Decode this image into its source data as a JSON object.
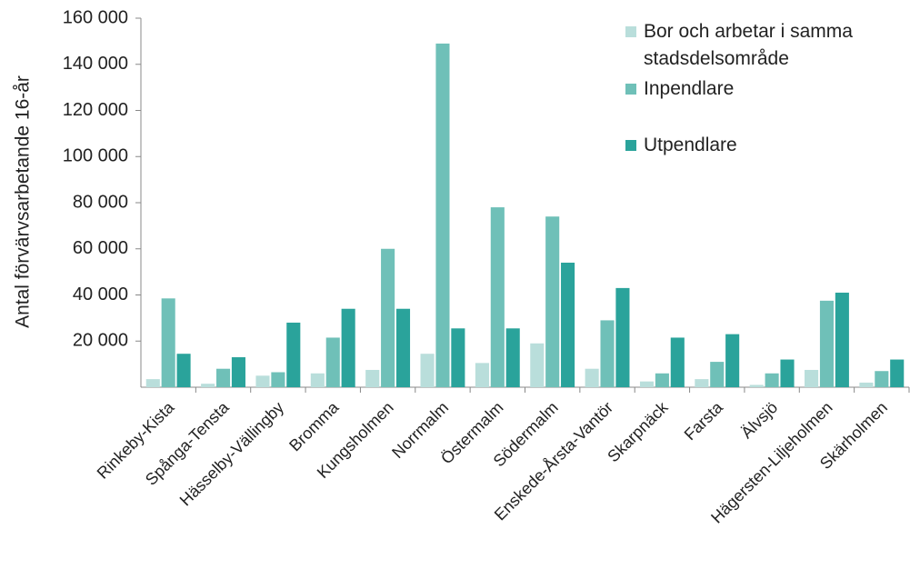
{
  "chart_data": {
    "type": "bar",
    "y_label": "Antal förvärvsarbetande 16-år",
    "categories": [
      "Rinkeby-Kista",
      "Spånga-Tensta",
      "Hässelby-Vällingby",
      "Bromma",
      "Kungsholmen",
      "Norrmalm",
      "Östermalm",
      "Södermalm",
      "Enskede-Årsta-Vantör",
      "Skarpnäck",
      "Farsta",
      "Älvsjö",
      "Hägersten-Liljeholmen",
      "Skärholmen"
    ],
    "series": [
      {
        "name": "Bor och arbetar i samma stadsdelsområde",
        "color": "#b9dedb",
        "values": [
          3500,
          1500,
          5000,
          6000,
          7500,
          14500,
          10500,
          19000,
          8000,
          2500,
          3500,
          1000,
          7500,
          2000
        ]
      },
      {
        "name": "Inpendlare",
        "color": "#6fc0b8",
        "values": [
          38500,
          8000,
          6500,
          21500,
          60000,
          149000,
          78000,
          74000,
          29000,
          6000,
          11000,
          6000,
          37500,
          7000
        ]
      },
      {
        "name": "Utpendlare",
        "color": "#2aa39b",
        "values": [
          14500,
          13000,
          28000,
          34000,
          34000,
          25500,
          25500,
          54000,
          43000,
          21500,
          23000,
          12000,
          41000,
          12000
        ]
      }
    ],
    "ylim": [
      0,
      160000
    ],
    "yticks": [
      {
        "value": 20000,
        "label": "20 000"
      },
      {
        "value": 40000,
        "label": "40 000"
      },
      {
        "value": 60000,
        "label": "60 000"
      },
      {
        "value": 80000,
        "label": "80 000"
      },
      {
        "value": 100000,
        "label": "100 000"
      },
      {
        "value": 120000,
        "label": "120 000"
      },
      {
        "value": 140000,
        "label": "140 000"
      },
      {
        "value": 160000,
        "label": "160 000"
      }
    ],
    "legend": "top-right"
  }
}
